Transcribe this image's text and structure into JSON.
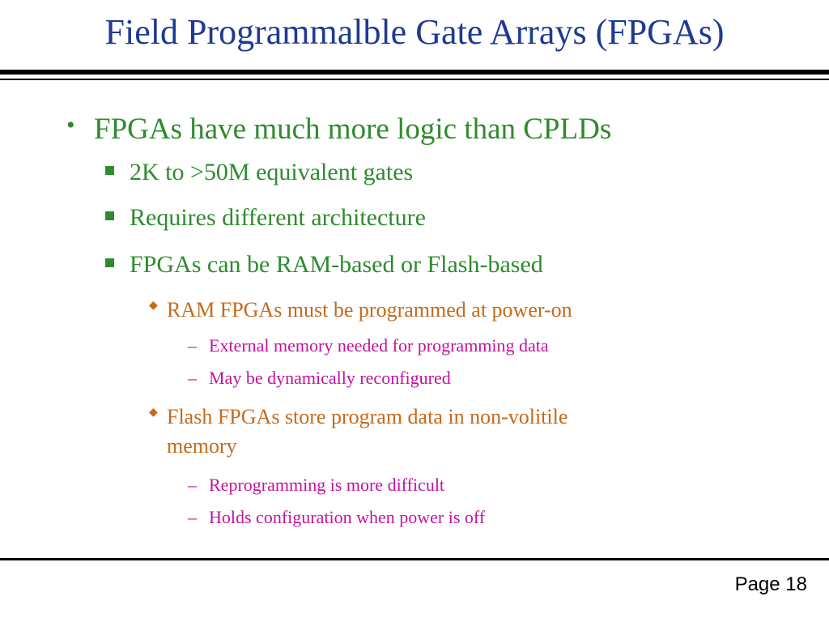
{
  "slide": {
    "title": "Field Programmalble Gate Arrays (FPGAs)",
    "bullet1": "FPGAs have much more logic than CPLDs",
    "sub1": "2K to >50M equivalent gates",
    "sub2": "Requires different architecture",
    "sub3": "FPGAs can be RAM-based or Flash-based",
    "ram": "RAM FPGAs must be programmed at power-on",
    "ram_a": "External memory needed for programming data",
    "ram_b": "May be dynamically reconfigured",
    "flash_line1": "Flash FPGAs store program data in non-volitile",
    "flash_line2": "memory",
    "flash_a": "Reprogramming is more difficult",
    "flash_b": "Holds configuration when power is off",
    "page": "Page 18"
  },
  "colors": {
    "title": "#1f3a93",
    "level1": "#2e8b2e",
    "level2": "#2e8b2e",
    "level3": "#c56a1c",
    "level4": "#c2139e"
  }
}
